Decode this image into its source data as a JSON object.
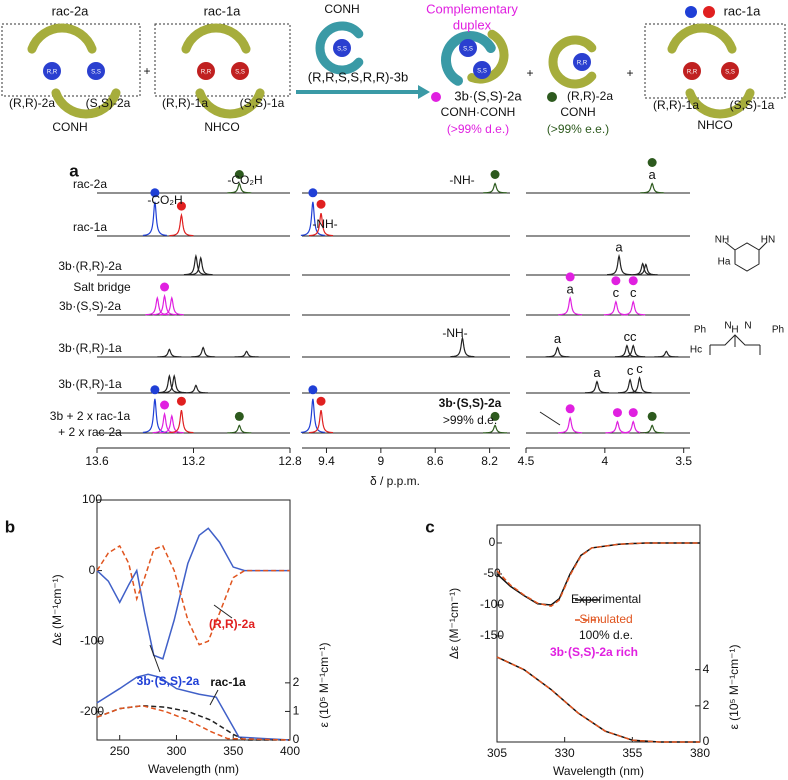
{
  "scheme": {
    "ball_labels": [
      "R,R",
      "S,S"
    ],
    "plus": "+",
    "left_box": {
      "title": "rac-2a",
      "labels": [
        "(R,R)-2a",
        "(S,S)-2a"
      ],
      "caption": "CONH"
    },
    "middle_box": {
      "title": "rac-1a",
      "labels": [
        "(R,R)-1a",
        "(S,S)-1a"
      ],
      "caption": "NHCO"
    },
    "reagent": {
      "caption": "CONH",
      "name": "(R,R,S,S,R,R)-3b"
    },
    "duplex": {
      "title": [
        "Complementary",
        "duplex"
      ],
      "name": "3b·(S,S)-2a",
      "caption": "CONH·CONH",
      "purity": "(>99% d.e.)"
    },
    "product2": {
      "name": "(R,R)-2a",
      "caption": "CONH",
      "purity": "(>99% e.e.)"
    },
    "right_box": {
      "title": "rac-1a",
      "labels": [
        "(R,R)-1a",
        "(S,S)-1a"
      ],
      "caption": "NHCO"
    }
  },
  "panel_a": {
    "label": "a",
    "xlabel": "δ / p.p.m.",
    "segments": [
      {
        "xlim": [
          13.6,
          12.8
        ],
        "xticks": [
          13.6,
          13.2,
          12.8
        ]
      },
      {
        "xlim": [
          9.58,
          8.05
        ],
        "xticks": [
          9.4,
          9,
          8.6,
          8.2
        ]
      },
      {
        "xlim": [
          4.5,
          3.46
        ],
        "xticks": [
          4.5,
          4,
          3.5
        ]
      }
    ],
    "traces": [
      {
        "label": [
          "rac-2a"
        ],
        "peaks": [
          {
            "ppm": 13.01,
            "intensity": 0.25,
            "color": "#2d5a1e",
            "marker": true
          },
          {
            "ppm": 8.16,
            "intensity": 0.25,
            "color": "#2d5a1e",
            "marker": true
          },
          {
            "ppm": 3.7,
            "intensity": 0.25,
            "color": "#2d5a1e",
            "marker": true,
            "label": "a"
          }
        ]
      },
      {
        "label": [
          "rac-1a"
        ],
        "peaks": [
          {
            "ppm": 13.36,
            "intensity": 0.9,
            "color": "#1f3fd6",
            "marker": true
          },
          {
            "ppm": 13.25,
            "intensity": 0.55,
            "color": "#e02020",
            "marker": true
          },
          {
            "ppm": 9.5,
            "intensity": 0.9,
            "color": "#1f3fd6",
            "marker": true
          },
          {
            "ppm": 9.44,
            "intensity": 0.6,
            "color": "#e02020",
            "marker": true
          }
        ]
      },
      {
        "label": [
          "3b·(R,R)-2a"
        ],
        "peaks": [
          {
            "ppm": 13.19,
            "intensity": 0.5,
            "color": "#222"
          },
          {
            "ppm": 13.17,
            "intensity": 0.45,
            "color": "#222"
          },
          {
            "ppm": 3.91,
            "intensity": 0.5,
            "color": "#222",
            "label": "a"
          },
          {
            "ppm": 3.76,
            "intensity": 0.3,
            "color": "#222"
          },
          {
            "ppm": 3.74,
            "intensity": 0.28,
            "color": "#222"
          }
        ]
      },
      {
        "label": [
          "3b·(S,S)-2a"
        ],
        "peaks": [
          {
            "ppm": 13.35,
            "intensity": 0.45,
            "color": "#e020e0"
          },
          {
            "ppm": 13.32,
            "intensity": 0.5,
            "color": "#e020e0",
            "marker": true
          },
          {
            "ppm": 13.29,
            "intensity": 0.45,
            "color": "#e020e0"
          },
          {
            "ppm": 4.22,
            "intensity": 0.45,
            "color": "#e020e0",
            "marker": true,
            "label": "a"
          },
          {
            "ppm": 3.93,
            "intensity": 0.35,
            "color": "#e020e0",
            "marker": true,
            "label": "c"
          },
          {
            "ppm": 3.82,
            "intensity": 0.35,
            "color": "#e020e0",
            "marker": true,
            "label": "c"
          }
        ]
      },
      {
        "label": [
          "3b·(R,R)-1a"
        ],
        "peaks": [
          {
            "ppm": 13.3,
            "intensity": 0.2,
            "color": "#222"
          },
          {
            "ppm": 13.16,
            "intensity": 0.25,
            "color": "#222"
          },
          {
            "ppm": 12.98,
            "intensity": 0.15,
            "color": "#222"
          },
          {
            "ppm": 8.4,
            "intensity": 0.5,
            "color": "#222"
          },
          {
            "ppm": 4.3,
            "intensity": 0.25,
            "color": "#222",
            "label": "a"
          },
          {
            "ppm": 3.86,
            "intensity": 0.3,
            "color": "#222",
            "label": "c"
          },
          {
            "ppm": 3.82,
            "intensity": 0.3,
            "color": "#222",
            "label": "c"
          },
          {
            "ppm": 3.61,
            "intensity": 0.15,
            "color": "#222"
          }
        ]
      },
      {
        "label": [
          "3b·(R,R)-1a"
        ],
        "peaks": [
          {
            "ppm": 13.3,
            "intensity": 0.45,
            "color": "#222"
          },
          {
            "ppm": 13.28,
            "intensity": 0.45,
            "color": "#222"
          },
          {
            "ppm": 13.19,
            "intensity": 0.2,
            "color": "#222"
          },
          {
            "ppm": 4.05,
            "intensity": 0.3,
            "color": "#222",
            "label": "a"
          },
          {
            "ppm": 3.84,
            "intensity": 0.35,
            "color": "#222",
            "label": "c"
          },
          {
            "ppm": 3.78,
            "intensity": 0.4,
            "color": "#222",
            "label": "c"
          }
        ]
      },
      {
        "label": [
          "3b + 2 x rac-1a",
          "+ 2 x rac-2a"
        ],
        "peaks": [
          {
            "ppm": 13.36,
            "intensity": 0.9,
            "color": "#1f3fd6",
            "marker": true
          },
          {
            "ppm": 13.32,
            "intensity": 0.5,
            "color": "#e020e0",
            "marker": true
          },
          {
            "ppm": 13.29,
            "intensity": 0.45,
            "color": "#e020e0"
          },
          {
            "ppm": 13.25,
            "intensity": 0.6,
            "color": "#e02020",
            "marker": true
          },
          {
            "ppm": 13.01,
            "intensity": 0.2,
            "color": "#2d5a1e",
            "marker": true
          },
          {
            "ppm": 9.5,
            "intensity": 0.9,
            "color": "#1f3fd6",
            "marker": true
          },
          {
            "ppm": 9.44,
            "intensity": 0.6,
            "color": "#e02020",
            "marker": true
          },
          {
            "ppm": 8.16,
            "intensity": 0.2,
            "color": "#2d5a1e",
            "marker": true
          },
          {
            "ppm": 4.22,
            "intensity": 0.4,
            "color": "#e020e0",
            "marker": true
          },
          {
            "ppm": 3.92,
            "intensity": 0.3,
            "color": "#e020e0",
            "marker": true
          },
          {
            "ppm": 3.82,
            "intensity": 0.3,
            "color": "#e020e0",
            "marker": true
          },
          {
            "ppm": 3.7,
            "intensity": 0.2,
            "color": "#2d5a1e",
            "marker": true
          }
        ]
      }
    ],
    "annotations": [
      "-CO₂H",
      "-CO₂H",
      "-NH-",
      "-NH-",
      "-NH-",
      "Salt bridge",
      "3b·(S,S)-2a",
      ">99% d.e."
    ],
    "structures": [
      [
        "NH",
        "HN",
        "Ha"
      ],
      [
        "H",
        "N",
        "N",
        "Ph",
        "Ph",
        "Hc"
      ]
    ]
  },
  "chart_data": [
    {
      "type": "line",
      "label": "b",
      "xlabel": "Wavelength (nm)",
      "ylabel": "Δε (M⁻¹cm⁻¹)",
      "y2label": "ε (10⁵ M⁻¹cm⁻¹)",
      "xlim": [
        230,
        400
      ],
      "xticks": [
        250,
        300,
        350,
        400
      ],
      "ylim": [
        -240,
        100
      ],
      "yticks": [
        100,
        0,
        -100,
        -200
      ],
      "y2lim": [
        0,
        8.4
      ],
      "y2ticks": [
        0,
        1,
        2
      ],
      "series": [
        {
          "color": "#4060c8",
          "style": "solid",
          "axis": "y",
          "x": [
            230,
            240,
            250,
            258,
            265,
            272,
            280,
            288,
            298,
            310,
            320,
            328,
            338,
            350,
            360,
            400
          ],
          "values": [
            0,
            -15,
            -45,
            -20,
            0,
            -60,
            -120,
            -125,
            -70,
            10,
            50,
            60,
            40,
            5,
            0,
            0
          ]
        },
        {
          "color": "#e0541e",
          "style": "dashed",
          "axis": "y",
          "x": [
            230,
            240,
            250,
            258,
            265,
            272,
            280,
            288,
            298,
            310,
            320,
            328,
            338,
            350,
            360,
            400
          ],
          "values": [
            0,
            25,
            35,
            10,
            -40,
            -10,
            30,
            35,
            0,
            -70,
            -105,
            -100,
            -60,
            -10,
            0,
            0
          ]
        },
        {
          "color": "#4060c8",
          "style": "solid",
          "axis": "y2",
          "x": [
            230,
            250,
            265,
            275,
            285,
            300,
            320,
            335,
            345,
            355,
            400
          ],
          "values": [
            1.3,
            1.8,
            2.2,
            2.3,
            2.2,
            1.8,
            1.6,
            1.5,
            0.8,
            0.1,
            0
          ]
        },
        {
          "color": "#222222",
          "style": "dashed",
          "axis": "y2",
          "x": [
            230,
            250,
            270,
            290,
            310,
            330,
            350,
            360,
            400
          ],
          "values": [
            0.8,
            1.1,
            1.2,
            1.15,
            1.0,
            0.7,
            0.2,
            0,
            0
          ]
        },
        {
          "color": "#e0541e",
          "style": "dashed",
          "axis": "y2",
          "x": [
            230,
            250,
            270,
            290,
            310,
            330,
            345,
            400
          ],
          "values": [
            0.8,
            1.1,
            1.2,
            1.0,
            0.7,
            0.3,
            0.05,
            0
          ]
        }
      ],
      "annotations": [
        {
          "text": "(R,R)-2a",
          "color": "#e02020"
        },
        {
          "text": "3b·(S,S)-2a",
          "color": "#1f3fd6"
        },
        {
          "text": "rac-1a",
          "color": "#111111"
        }
      ]
    },
    {
      "type": "line",
      "label": "c",
      "xlabel": "Wavelength (nm)",
      "ylabel": "Δε (M⁻¹cm⁻¹)",
      "y2label": "ε (10⁵ M⁻¹cm⁻¹)",
      "xlim": [
        305,
        380
      ],
      "xticks": [
        305,
        330,
        355,
        380
      ],
      "ylim": [
        -321,
        29
      ],
      "yticks": [
        0,
        -50,
        -100,
        -150
      ],
      "y2lim": [
        0,
        12
      ],
      "y2ticks": [
        0,
        2,
        4
      ],
      "series": [
        {
          "name": "Experimental",
          "color": "#111111",
          "style": "solid",
          "axis": "y",
          "x": [
            305,
            310,
            315,
            320,
            325,
            328,
            332,
            336,
            340,
            350,
            360,
            380
          ],
          "values": [
            -50,
            -70,
            -85,
            -98,
            -100,
            -90,
            -50,
            -20,
            -8,
            -2,
            0,
            0
          ]
        },
        {
          "name": "Simulated",
          "color": "#e0541e",
          "style": "dashed",
          "axis": "y",
          "x": [
            305,
            310,
            315,
            320,
            325,
            328,
            332,
            336,
            340,
            350,
            360,
            380
          ],
          "values": [
            -45,
            -68,
            -84,
            -97,
            -102,
            -92,
            -52,
            -21,
            -8,
            -2,
            0,
            0
          ]
        },
        {
          "color": "#111111",
          "style": "solid",
          "axis": "y2",
          "x": [
            305,
            315,
            325,
            335,
            345,
            355,
            365,
            380
          ],
          "values": [
            4.7,
            4.0,
            2.9,
            1.6,
            0.6,
            0.1,
            0,
            0
          ]
        },
        {
          "color": "#e0541e",
          "style": "dashed",
          "axis": "y2",
          "x": [
            305,
            315,
            325,
            335,
            345,
            355,
            365,
            380
          ],
          "values": [
            4.7,
            4.0,
            2.9,
            1.6,
            0.6,
            0.1,
            0,
            0
          ]
        }
      ],
      "legend_notes": [
        {
          "text": "100% d.e.",
          "color": "#111111"
        },
        {
          "text": "3b·(S,S)-2a rich",
          "color": "#e020e0"
        }
      ]
    }
  ]
}
